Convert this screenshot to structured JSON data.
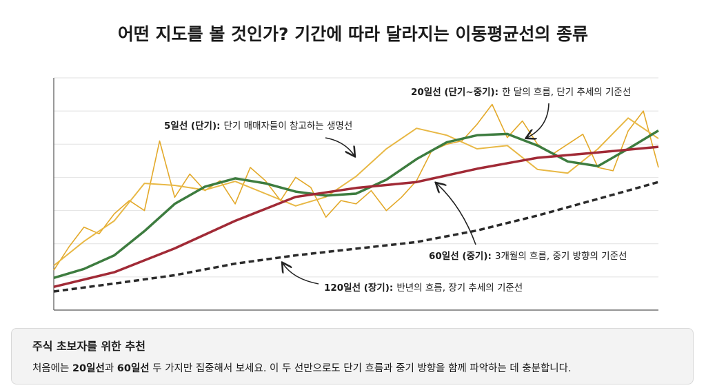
{
  "chart_data": {
    "type": "line",
    "title": "어떤 지도를 볼 것인가? 기간에 따라 달라지는 이동평균선의 종류",
    "ylim": [
      0,
      7
    ],
    "ygrid": [
      1,
      2,
      3,
      4,
      5,
      6,
      7
    ],
    "series": [
      {
        "color": "#e3a92a",
        "width": 1.6,
        "values": [
          1.2,
          1.9,
          2.5,
          2.3,
          2.9,
          3.3,
          3.0,
          5.1,
          3.4,
          4.1,
          3.6,
          3.9,
          3.2,
          4.3,
          3.9,
          3.3,
          4.0,
          3.7,
          2.8,
          3.3,
          3.2,
          3.6,
          3.0,
          3.4,
          3.9,
          4.8,
          5.0,
          5.1,
          5.6,
          6.2,
          5.2,
          5.7,
          5.0,
          4.7,
          5.0,
          5.3,
          4.3,
          4.2,
          5.4,
          6.0,
          4.3
        ]
      },
      {
        "color": "#e8b845",
        "width": 2,
        "values": [
          1.34,
          2.07,
          2.69,
          3.82,
          3.76,
          3.62,
          3.88,
          3.51,
          3.14,
          3.41,
          4.03,
          4.86,
          5.48,
          5.27,
          4.86,
          4.96,
          4.24,
          4.13,
          4.86,
          5.79,
          5.17
        ]
      },
      {
        "color": "#3d7c3f",
        "width": 3.5,
        "values": [
          0.97,
          1.24,
          1.65,
          2.38,
          3.2,
          3.72,
          3.97,
          3.82,
          3.57,
          3.45,
          3.51,
          3.93,
          4.55,
          5.06,
          5.27,
          5.31,
          4.96,
          4.48,
          4.34,
          4.86,
          5.41
        ]
      },
      {
        "color": "#a12a36",
        "width": 3.5,
        "values": [
          0.7,
          1.14,
          1.86,
          2.69,
          3.41,
          3.68,
          3.86,
          4.26,
          4.59,
          4.75,
          4.92
        ]
      },
      {
        "color": "#2b2b2b",
        "width": 3.5,
        "dash": "8 5",
        "values": [
          0.56,
          0.8,
          1.05,
          1.4,
          1.65,
          1.85,
          2.05,
          2.4,
          2.85,
          3.35,
          3.86
        ]
      }
    ],
    "annotations": [
      {
        "label": "5일선 (단기):",
        "text": "단기 매매자들이 참고하는 생명선"
      },
      {
        "label": "20일선 (단기~중기):",
        "text": "한 달의 흐름, 단기 추세의 기준선"
      },
      {
        "label": "60일선 (중기):",
        "text": "3개월의 흐름, 중기 방향의 기준선"
      },
      {
        "label": "120일선 (장기):",
        "text": "반년의 흐름, 장기 추세의 기준선"
      }
    ]
  },
  "tip": {
    "title": "주식 초보자를 위한 추천",
    "parts": [
      "처음에는 ",
      "20일선",
      "과 ",
      "60일선",
      " 두 가지만 집중해서 보세요. 이 두 선만으로도 단기 흐름과 중기 방향을 함께 파악하는 데 충분합니다."
    ]
  }
}
